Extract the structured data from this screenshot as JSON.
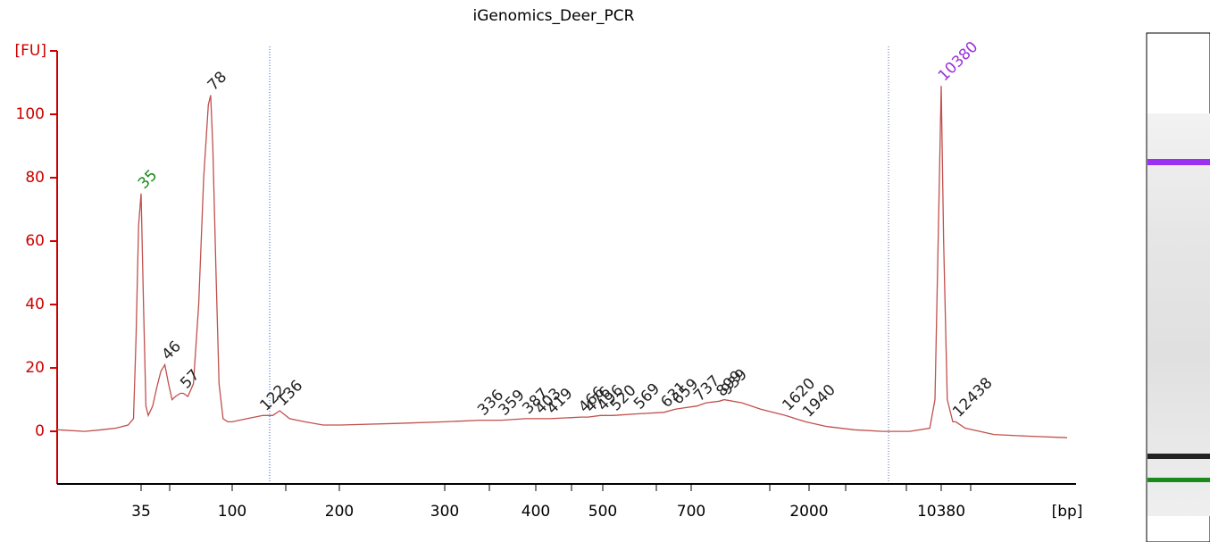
{
  "chart_data": {
    "type": "line",
    "title": "iGenomics_Deer_PCR",
    "y_label": "[FU]",
    "x_label": "[bp]",
    "color": "#c0504d",
    "axis_color": "#cc0000",
    "x": [
      13,
      18,
      22,
      26,
      30,
      32,
      33,
      34,
      35,
      36,
      37,
      38,
      40,
      42,
      44,
      46,
      48,
      50,
      52,
      55,
      57,
      60,
      64,
      68,
      72,
      76,
      78,
      80,
      83,
      86,
      90,
      95,
      100,
      110,
      122,
      130,
      136,
      145,
      160,
      180,
      200,
      250,
      300,
      336,
      359,
      387,
      403,
      419,
      466,
      476,
      496,
      520,
      569,
      631,
      659,
      737,
      800,
      899,
      939,
      1100,
      1300,
      1620,
      1940,
      2500,
      3500,
      5000,
      7000,
      9000,
      9600,
      10000,
      10380,
      10700,
      11200,
      12000,
      12438,
      14000,
      20000,
      30000,
      49800
    ],
    "values": [
      0.5,
      0,
      0.5,
      1,
      2,
      4,
      30,
      65,
      75,
      40,
      8,
      5,
      8,
      14,
      19,
      21,
      15,
      10,
      11,
      12,
      12,
      11,
      15,
      40,
      80,
      103,
      106,
      90,
      50,
      15,
      4,
      3,
      3,
      4,
      5,
      5,
      6.5,
      4,
      3,
      2,
      2,
      2.5,
      3,
      3.5,
      3.5,
      4,
      4,
      4,
      4.5,
      4.5,
      5,
      5,
      5.5,
      6,
      7,
      8,
      9,
      9.5,
      10,
      9,
      7,
      5,
      3,
      1.5,
      0.5,
      0,
      0,
      1,
      10,
      60,
      109,
      60,
      10,
      3,
      3,
      1,
      -1,
      -1.5,
      -2
    ],
    "peaks": {
      "bp": [
        35,
        46,
        57,
        78,
        122,
        136,
        336,
        359,
        387,
        403,
        419,
        466,
        476,
        496,
        520,
        569,
        631,
        659,
        737,
        899,
        939,
        1620,
        1940,
        10380,
        12438
      ],
      "fu": [
        75,
        21,
        12,
        106,
        5,
        6.5,
        3.5,
        3.5,
        4,
        4,
        4,
        4.5,
        4.5,
        5,
        5,
        5.5,
        6,
        7,
        8,
        9.5,
        10,
        5,
        3,
        109,
        3
      ],
      "colors": [
        "#1a8a1a",
        "#222222",
        "#222222",
        "#222222",
        "#222222",
        "#222222",
        "#222222",
        "#222222",
        "#222222",
        "#222222",
        "#222222",
        "#222222",
        "#222222",
        "#222222",
        "#222222",
        "#222222",
        "#222222",
        "#222222",
        "#222222",
        "#222222",
        "#222222",
        "#222222",
        "#222222",
        "#9b30d9",
        "#222222"
      ]
    },
    "xlim": [
      13,
      49800
    ],
    "xticks": [
      35,
      100,
      200,
      300,
      400,
      500,
      700,
      2000,
      10380
    ],
    "ylim": [
      -16.6,
      120
    ],
    "yticks": [
      0,
      20,
      40,
      60,
      80,
      100
    ]
  }
}
